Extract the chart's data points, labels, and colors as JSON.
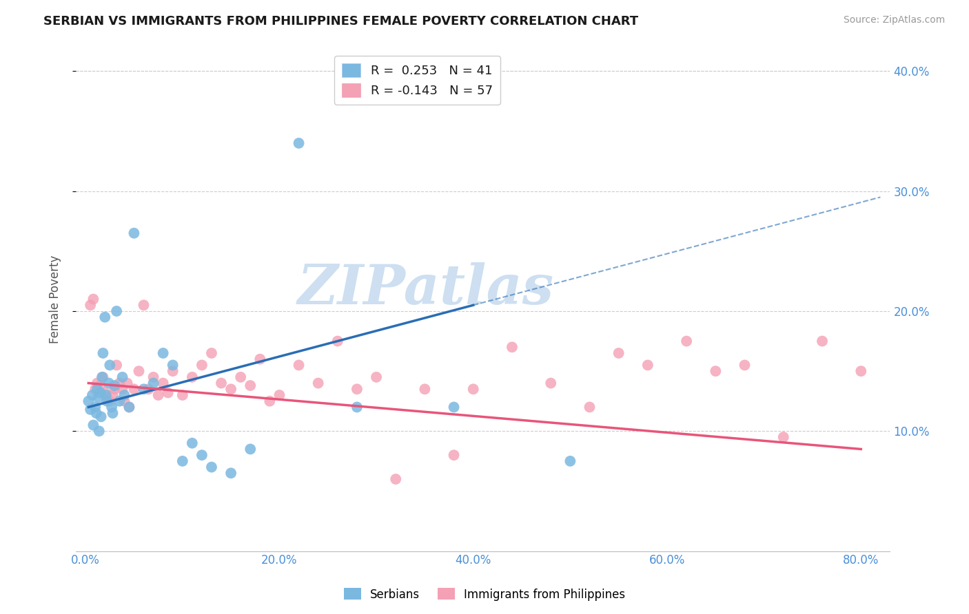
{
  "title": "SERBIAN VS IMMIGRANTS FROM PHILIPPINES FEMALE POVERTY CORRELATION CHART",
  "source": "Source: ZipAtlas.com",
  "xlabel_ticks": [
    "0.0%",
    "20.0%",
    "40.0%",
    "60.0%",
    "80.0%"
  ],
  "xlabel_vals": [
    0.0,
    20.0,
    40.0,
    60.0,
    80.0
  ],
  "ylabel": "Female Poverty",
  "ylim": [
    0.0,
    42.0
  ],
  "xlim": [
    -1.0,
    83.0
  ],
  "ytick_vals": [
    10.0,
    20.0,
    30.0,
    40.0
  ],
  "ytick_labels": [
    "10.0%",
    "20.0%",
    "30.0%",
    "40.0%"
  ],
  "legend1_label": "Serbians",
  "legend2_label": "Immigrants from Philippines",
  "r1": 0.253,
  "n1": 41,
  "r2": -0.143,
  "n2": 57,
  "color_blue": "#7ab8e0",
  "color_pink": "#f4a0b5",
  "color_blue_line": "#2a6db5",
  "color_pink_line": "#e8557a",
  "watermark": "ZIPatlas",
  "watermark_color": "#cddff0",
  "blue_x": [
    0.3,
    0.5,
    0.7,
    0.8,
    1.0,
    1.1,
    1.2,
    1.3,
    1.4,
    1.5,
    1.6,
    1.7,
    1.8,
    2.0,
    2.1,
    2.2,
    2.4,
    2.5,
    2.7,
    2.8,
    3.0,
    3.2,
    3.5,
    3.8,
    4.0,
    4.5,
    5.0,
    6.0,
    7.0,
    8.0,
    9.0,
    10.0,
    11.0,
    12.0,
    13.0,
    15.0,
    17.0,
    22.0,
    28.0,
    38.0,
    50.0
  ],
  "blue_y": [
    12.5,
    11.8,
    13.0,
    10.5,
    12.0,
    11.5,
    13.5,
    12.8,
    10.0,
    13.2,
    11.2,
    14.5,
    16.5,
    19.5,
    13.0,
    12.5,
    14.0,
    15.5,
    12.0,
    11.5,
    13.8,
    20.0,
    12.5,
    14.5,
    13.0,
    12.0,
    26.5,
    13.5,
    14.0,
    16.5,
    15.5,
    7.5,
    9.0,
    8.0,
    7.0,
    6.5,
    8.5,
    34.0,
    12.0,
    12.0,
    7.5
  ],
  "pink_x": [
    0.5,
    0.8,
    1.0,
    1.2,
    1.5,
    1.8,
    2.0,
    2.2,
    2.5,
    2.8,
    3.0,
    3.2,
    3.5,
    3.8,
    4.0,
    4.3,
    4.5,
    5.0,
    5.5,
    6.0,
    6.5,
    7.0,
    7.5,
    8.0,
    8.5,
    9.0,
    10.0,
    11.0,
    12.0,
    13.0,
    14.0,
    15.0,
    16.0,
    17.0,
    18.0,
    19.0,
    20.0,
    22.0,
    24.0,
    26.0,
    28.0,
    30.0,
    32.0,
    35.0,
    38.0,
    40.0,
    44.0,
    48.0,
    52.0,
    55.0,
    58.0,
    62.0,
    65.0,
    68.0,
    72.0,
    76.0,
    80.0
  ],
  "pink_y": [
    20.5,
    21.0,
    13.5,
    14.0,
    13.8,
    14.5,
    13.2,
    12.8,
    12.5,
    13.0,
    13.5,
    15.5,
    14.0,
    13.5,
    12.5,
    14.0,
    12.0,
    13.5,
    15.0,
    20.5,
    13.5,
    14.5,
    13.0,
    14.0,
    13.2,
    15.0,
    13.0,
    14.5,
    15.5,
    16.5,
    14.0,
    13.5,
    14.5,
    13.8,
    16.0,
    12.5,
    13.0,
    15.5,
    14.0,
    17.5,
    13.5,
    14.5,
    6.0,
    13.5,
    8.0,
    13.5,
    17.0,
    14.0,
    12.0,
    16.5,
    15.5,
    17.5,
    15.0,
    15.5,
    9.5,
    17.5,
    15.0
  ],
  "blue_line_x0": 0.3,
  "blue_line_x1": 40.0,
  "blue_line_y0": 12.0,
  "blue_line_y1": 20.5,
  "blue_dash_x0": 40.0,
  "blue_dash_x1": 82.0,
  "blue_dash_y0": 20.5,
  "blue_dash_y1": 29.5,
  "pink_line_x0": 0.3,
  "pink_line_x1": 80.0,
  "pink_line_y0": 14.0,
  "pink_line_y1": 8.5
}
